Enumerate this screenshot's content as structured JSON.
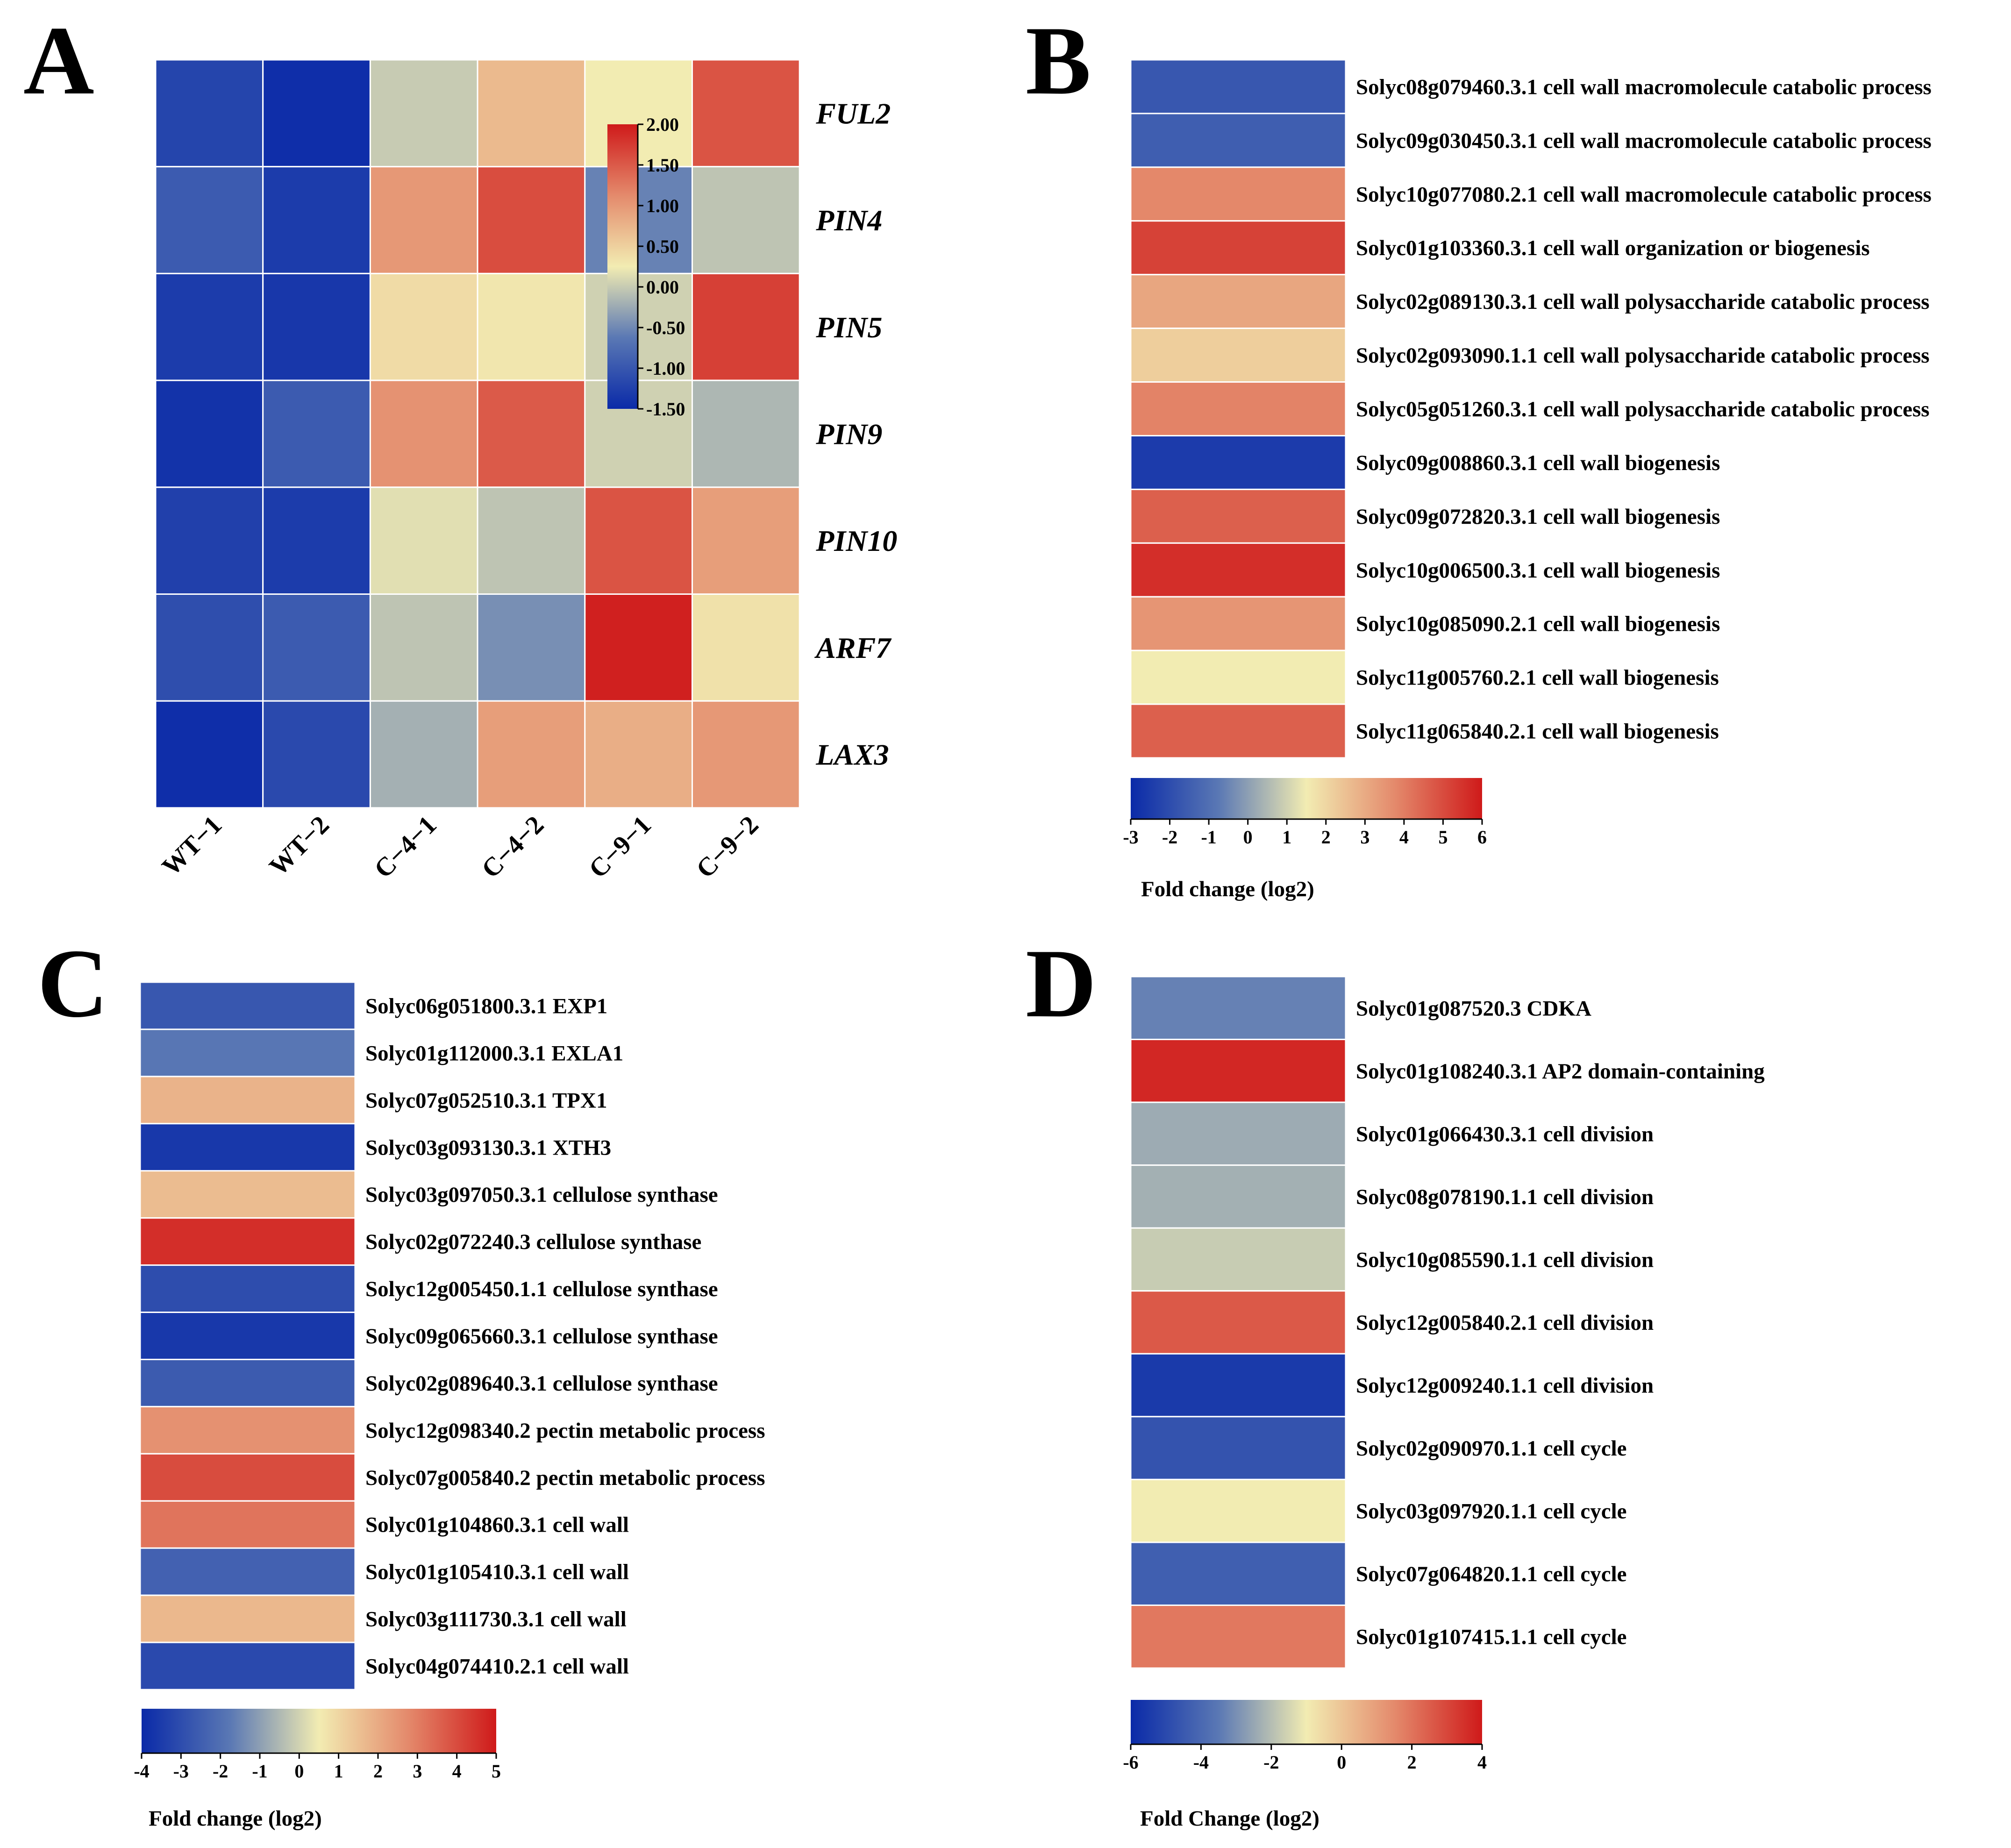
{
  "chart_data": [
    {
      "panel": "A",
      "type": "heatmap",
      "title": "",
      "columns": [
        "WT−1",
        "WT−2",
        "C−4−1",
        "C−4−2",
        "C−9−1",
        "C−9−2"
      ],
      "rows": [
        "FUL2",
        "PIN4",
        "PIN5",
        "PIN9",
        "PIN10",
        "ARF7",
        "LAX3"
      ],
      "values": [
        [
          -1.2,
          -1.45,
          0.0,
          0.7,
          0.25,
          1.55
        ],
        [
          -0.95,
          -1.3,
          1.0,
          1.6,
          -0.55,
          -0.05
        ],
        [
          -1.3,
          -1.35,
          0.4,
          0.3,
          0.05,
          1.7
        ],
        [
          -1.4,
          -0.95,
          1.05,
          1.5,
          0.05,
          -0.15
        ],
        [
          -1.25,
          -1.3,
          0.15,
          -0.05,
          1.55,
          0.95
        ],
        [
          -1.1,
          -0.95,
          -0.05,
          -0.45,
          1.95,
          0.35
        ],
        [
          -1.45,
          -1.15,
          -0.2,
          0.95,
          0.8,
          1.0
        ]
      ],
      "colorbar": {
        "min": -1.5,
        "max": 2.0,
        "ticks": [
          2.0,
          1.5,
          1.0,
          0.5,
          0.0,
          -0.5,
          -1.0,
          -1.5
        ],
        "tick_labels": [
          "2.00",
          "1.50",
          "1.00",
          "0.50",
          "0.00",
          "-0.50",
          "-1.00",
          "-1.50"
        ],
        "title": ""
      }
    },
    {
      "panel": "B",
      "type": "heatmap",
      "rows": [
        {
          "label": "Solyc08g079460.3.1 cell wall macromolecule catabolic process",
          "value": -1.7
        },
        {
          "label": "Solyc09g030450.3.1 cell wall macromolecule catabolic process",
          "value": -1.5
        },
        {
          "label": "Solyc10g077080.2.1 cell wall macromolecule catabolic process",
          "value": 3.8
        },
        {
          "label": "Solyc01g103360.3.1 cell wall organization or biogenesis",
          "value": 5.2
        },
        {
          "label": "Solyc02g089130.3.1 cell wall polysaccharide catabolic process",
          "value": 3.1
        },
        {
          "label": "Solyc02g093090.1.1 cell wall polysaccharide catabolic process",
          "value": 2.2
        },
        {
          "label": "Solyc05g051260.3.1 cell wall polysaccharide catabolic process",
          "value": 3.9
        },
        {
          "label": "Solyc09g008860.3.1 cell wall biogenesis",
          "value": -2.5
        },
        {
          "label": "Solyc09g072820.3.1 cell wall biogenesis",
          "value": 4.6
        },
        {
          "label": "Solyc10g006500.3.1 cell wall biogenesis",
          "value": 5.6
        },
        {
          "label": "Solyc10g085090.2.1 cell wall biogenesis",
          "value": 3.5
        },
        {
          "label": "Solyc11g005760.2.1 cell wall biogenesis",
          "value": 1.5
        },
        {
          "label": "Solyc11g065840.2.1 cell wall biogenesis",
          "value": 4.6
        }
      ],
      "colorbar": {
        "min": -3,
        "max": 6,
        "ticks": [
          -3,
          -2,
          -1,
          0,
          1,
          2,
          3,
          4,
          5,
          6
        ],
        "tick_labels": [
          "-3",
          "-2",
          "-1",
          "0",
          "1",
          "2",
          "3",
          "4",
          "5",
          "6"
        ],
        "title": "Fold change (log2)"
      }
    },
    {
      "panel": "C",
      "type": "heatmap",
      "rows": [
        {
          "label": "Solyc06g051800.3.1 EXP1",
          "value": -2.7
        },
        {
          "label": "Solyc01g112000.3.1 EXLA1",
          "value": -1.8
        },
        {
          "label": "Solyc07g052510.3.1 TPX1",
          "value": 1.8
        },
        {
          "label": "Solyc03g093130.3.1 XTH3",
          "value": -3.6
        },
        {
          "label": "Solyc03g097050.3.1 cellulose synthase",
          "value": 1.6
        },
        {
          "label": "Solyc02g072240.3 cellulose synthase",
          "value": 4.6
        },
        {
          "label": "Solyc12g005450.1.1 cellulose synthase",
          "value": -3.0
        },
        {
          "label": "Solyc09g065660.3.1 cellulose synthase",
          "value": -3.6
        },
        {
          "label": "Solyc02g089640.3.1 cellulose synthase",
          "value": -2.6
        },
        {
          "label": "Solyc12g098340.2 pectin metabolic process",
          "value": 2.6
        },
        {
          "label": "Solyc07g005840.2 pectin metabolic process",
          "value": 4.0
        },
        {
          "label": "Solyc01g104860.3.1 cell wall",
          "value": 3.2
        },
        {
          "label": "Solyc01g105410.3.1 cell wall",
          "value": -2.4
        },
        {
          "label": "Solyc03g111730.3.1 cell wall",
          "value": 1.7
        },
        {
          "label": "Solyc04g074410.2.1 cell wall",
          "value": -3.1
        }
      ],
      "colorbar": {
        "min": -4,
        "max": 5,
        "ticks": [
          -4,
          -3,
          -2,
          -1,
          0,
          1,
          2,
          3,
          4,
          5
        ],
        "tick_labels": [
          "-4",
          "-3",
          "-2",
          "-1",
          "0",
          "1",
          "2",
          "3",
          "4",
          "5"
        ],
        "title": "Fold change (log2)"
      }
    },
    {
      "panel": "D",
      "type": "heatmap",
      "rows": [
        {
          "label": "Solyc01g087520.3 CDKA",
          "value": -3.3
        },
        {
          "label": "Solyc01g108240.3.1 AP2 domain-containing",
          "value": 3.7
        },
        {
          "label": "Solyc01g066430.3.1 cell division",
          "value": -2.4
        },
        {
          "label": "Solyc08g078190.1.1 cell division",
          "value": -2.3
        },
        {
          "label": "Solyc10g085590.1.1 cell division",
          "value": -1.7
        },
        {
          "label": "Solyc12g005840.2.1 cell division",
          "value": 2.6
        },
        {
          "label": "Solyc12g009240.1.1 cell division",
          "value": -5.5
        },
        {
          "label": "Solyc02g090970.1.1 cell cycle",
          "value": -4.7
        },
        {
          "label": "Solyc03g097920.1.1 cell cycle",
          "value": -1.0
        },
        {
          "label": "Solyc07g064820.1.1 cell cycle",
          "value": -4.3
        },
        {
          "label": "Solyc01g107415.1.1 cell cycle",
          "value": 1.9
        }
      ],
      "colorbar": {
        "min": -6,
        "max": 4,
        "ticks": [
          -6,
          -4,
          -2,
          0,
          2,
          4
        ],
        "tick_labels": [
          "-6",
          "-4",
          "-2",
          "0",
          "2",
          "4"
        ],
        "title": "Fold Change (log2)"
      }
    }
  ]
}
